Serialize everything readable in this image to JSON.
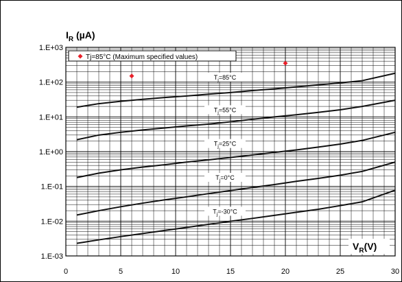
{
  "chart_data": {
    "type": "line",
    "ylabel_main": "I",
    "ylabel_sub": "R",
    "ylabel_unit": " (µA)",
    "xlabel_main": "V",
    "xlabel_sub": "R",
    "xlabel_unit": "(V)",
    "xlim": [
      0,
      30
    ],
    "ylim": [
      0.001,
      1000
    ],
    "yscale": "log",
    "grid": true,
    "x_ticks": [
      0,
      5,
      10,
      15,
      20,
      25,
      30
    ],
    "x_tick_labels": [
      "0",
      "5",
      "10",
      "15",
      "20",
      "25",
      "30"
    ],
    "y_tick_values": [
      1000,
      100,
      10,
      1,
      0.1,
      0.01,
      0.001
    ],
    "y_tick_labels": [
      "1.E+03",
      "1.E+02",
      "1.E+01",
      "1.E+00",
      "1.E-01",
      "1.E-02",
      "1.E-03"
    ],
    "legend": {
      "placement": "top-left",
      "label": "Tj=85°C (Maximum specified values)",
      "marker_color": "#e8202a"
    },
    "series": [
      {
        "name": "Tj=85°C",
        "label_main": "T",
        "label_sub": "j",
        "label_rest": "=85°C",
        "label_at": [
          14.5,
          130
        ],
        "x": [
          1,
          3,
          5,
          7,
          9,
          11,
          13,
          15,
          17,
          19,
          21,
          23,
          25,
          27,
          30
        ],
        "y": [
          19,
          24,
          28,
          32,
          36,
          40,
          45,
          50,
          57,
          64,
          73,
          83,
          95,
          110,
          180
        ]
      },
      {
        "name": "Tj=55°C",
        "label_main": "T",
        "label_sub": "j",
        "label_rest": "=55°C",
        "label_at": [
          14.5,
          15
        ],
        "x": [
          1,
          3,
          5,
          7,
          9,
          11,
          13,
          15,
          17,
          19,
          21,
          23,
          25,
          27,
          30
        ],
        "y": [
          2.2,
          3.0,
          3.6,
          4.2,
          4.8,
          5.5,
          6.2,
          7.2,
          8.5,
          10,
          11.5,
          13.5,
          16,
          20,
          30
        ]
      },
      {
        "name": "Tj=25°C",
        "label_main": "T",
        "label_sub": "j",
        "label_rest": "=25°C",
        "label_at": [
          14.5,
          1.6
        ],
        "x": [
          1,
          3,
          5,
          7,
          9,
          11,
          13,
          15,
          17,
          19,
          21,
          23,
          25,
          27,
          30
        ],
        "y": [
          0.18,
          0.24,
          0.3,
          0.36,
          0.42,
          0.5,
          0.58,
          0.68,
          0.8,
          0.95,
          1.12,
          1.35,
          1.65,
          2.1,
          3.6
        ]
      },
      {
        "name": "Tj=0°C",
        "label_main": "T",
        "label_sub": "j",
        "label_rest": "=0°C",
        "label_at": [
          14.5,
          0.17
        ],
        "x": [
          1,
          3,
          5,
          7,
          9,
          11,
          13,
          15,
          17,
          19,
          21,
          23,
          25,
          27,
          30
        ],
        "y": [
          0.015,
          0.02,
          0.026,
          0.033,
          0.041,
          0.05,
          0.062,
          0.076,
          0.093,
          0.113,
          0.14,
          0.17,
          0.21,
          0.27,
          0.5
        ]
      },
      {
        "name": "Tj=-30°C",
        "label_main": "T",
        "label_sub": "j",
        "label_rest": "=-30°C",
        "label_at": [
          14.5,
          0.018
        ],
        "x": [
          1,
          3,
          5,
          7,
          9,
          11,
          13,
          15,
          17,
          19,
          21,
          23,
          25,
          27,
          30
        ],
        "y": [
          0.0023,
          0.0029,
          0.0036,
          0.0044,
          0.0054,
          0.0066,
          0.0081,
          0.0099,
          0.012,
          0.0147,
          0.018,
          0.022,
          0.028,
          0.036,
          0.078
        ]
      }
    ],
    "max_points": {
      "name": "Tj=85°C (Maximum specified values)",
      "color": "#e8202a",
      "x": [
        6,
        20
      ],
      "y": [
        150,
        350
      ]
    }
  }
}
